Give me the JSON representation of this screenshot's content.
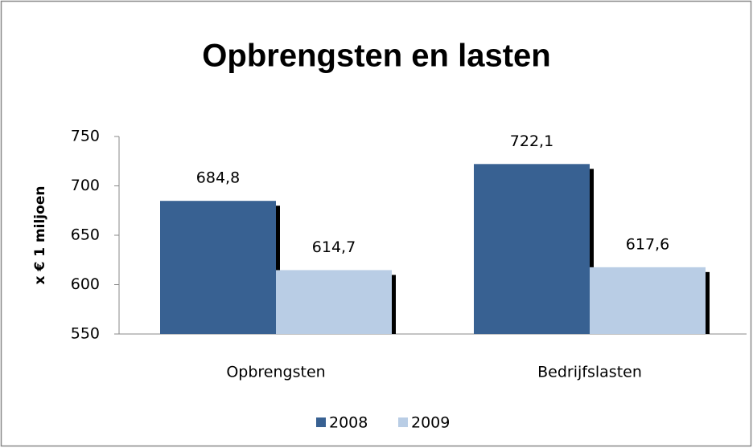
{
  "chart_data": {
    "type": "bar",
    "title": "Opbrengsten en lasten",
    "y_label": "x € 1 miljoen",
    "categories": [
      "Opbrengsten",
      "Bedrijfslasten"
    ],
    "series": [
      {
        "name": "2008",
        "color": "#386192",
        "values": [
          684.8,
          722.1
        ],
        "value_labels": [
          "684,8",
          "722,1"
        ]
      },
      {
        "name": "2009",
        "color": "#b9cde5",
        "values": [
          614.7,
          617.6
        ],
        "value_labels": [
          "614,7",
          "617,6"
        ]
      }
    ],
    "ylim": [
      550,
      750
    ],
    "yticks": [
      550,
      600,
      650,
      700,
      750
    ],
    "grid": false,
    "legend": "bottom"
  }
}
